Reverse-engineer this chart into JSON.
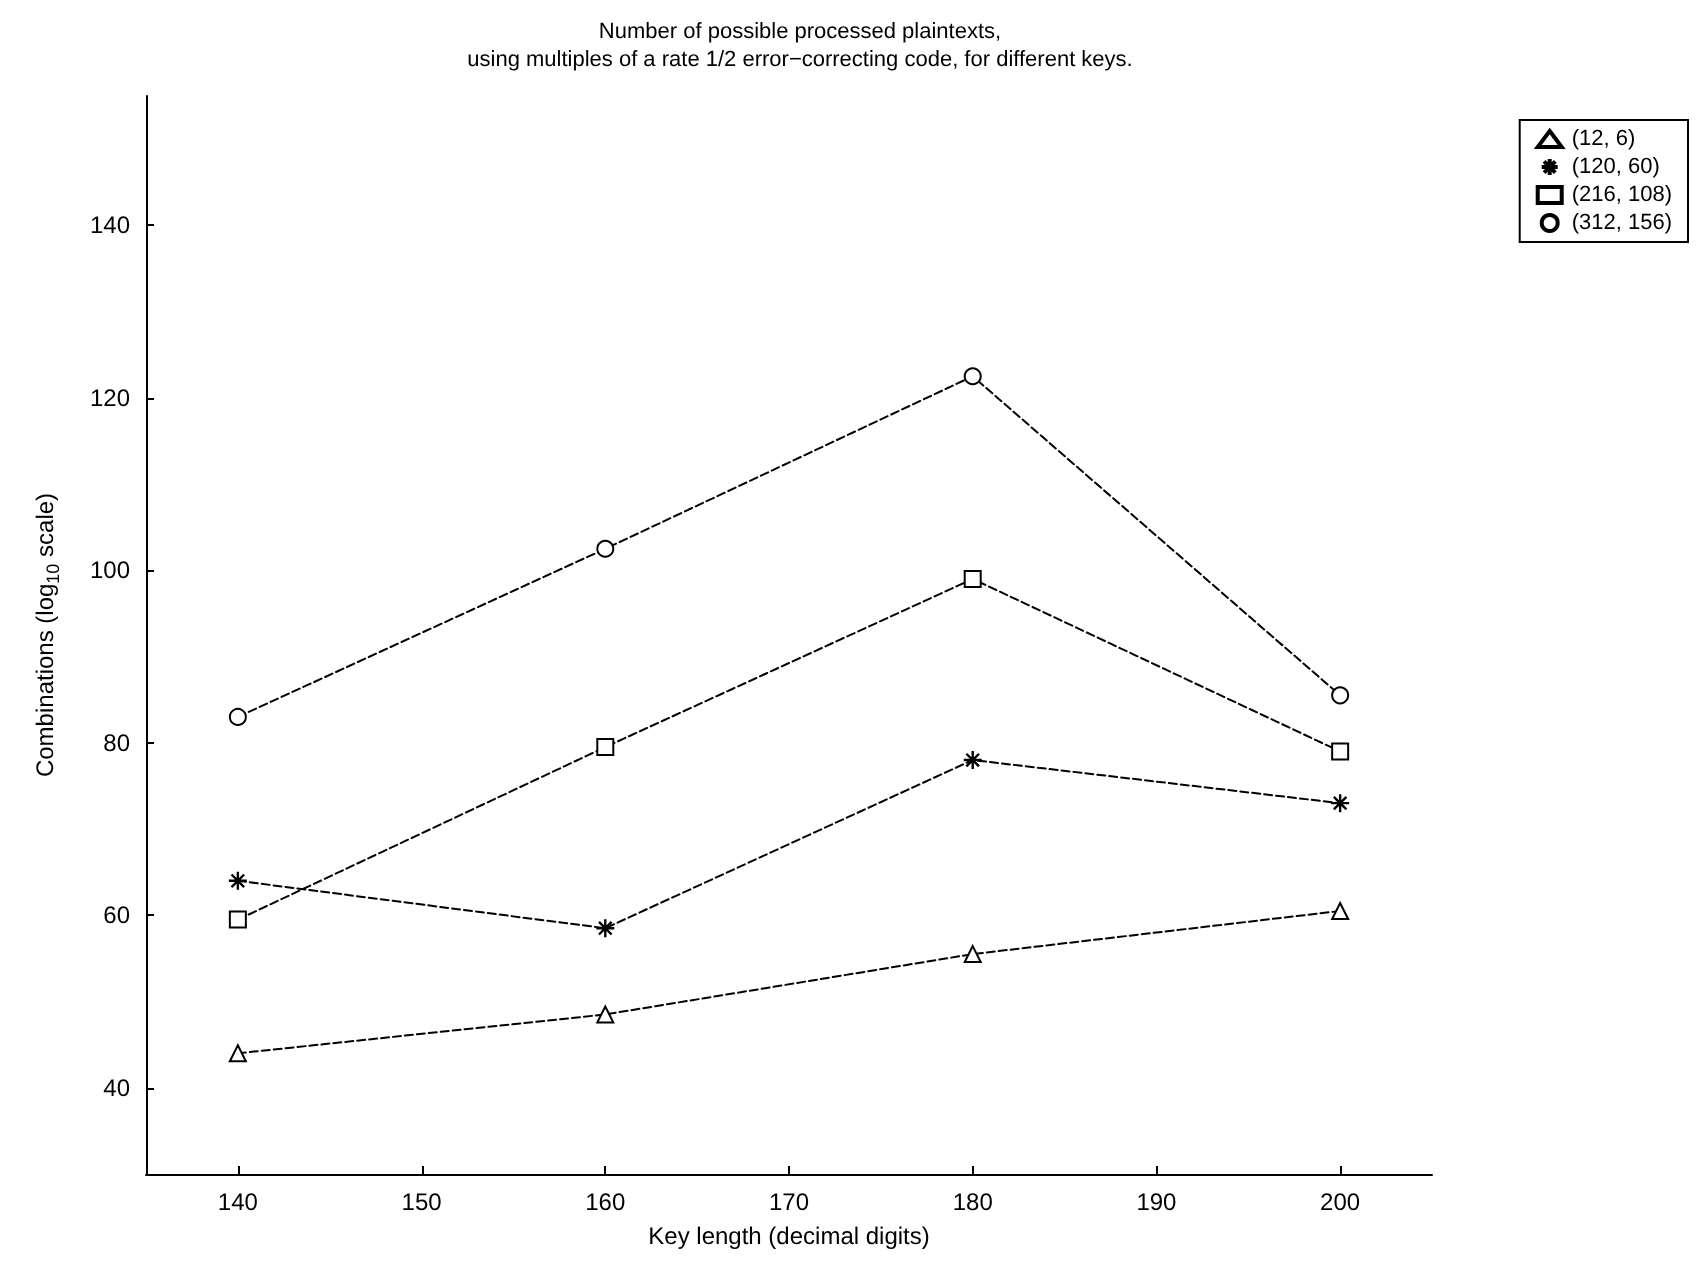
{
  "chart_data": {
    "type": "line",
    "title": "Number of possible processed plaintexts,\nusing multiples of a rate 1/2 error−correcting code, for different keys.",
    "xlabel": "Key length (decimal digits)",
    "ylabel": "Combinations (log$_{10}$ scale)",
    "x": [
      140,
      160,
      180,
      200
    ],
    "series": [
      {
        "name": "(12, 6)",
        "color": "#000000",
        "marker": "triangle",
        "values": [
          44,
          48.5,
          55.5,
          60.5
        ]
      },
      {
        "name": "(120, 60)",
        "color": "#000000",
        "marker": "cross",
        "values": [
          64,
          58.5,
          78,
          73
        ]
      },
      {
        "name": "(216, 108)",
        "color": "#000000",
        "marker": "square",
        "values": [
          59.5,
          79.5,
          99,
          79
        ]
      },
      {
        "name": "(312, 156)",
        "color": "#000000",
        "marker": "circle",
        "values": [
          83,
          102.5,
          122.5,
          85.5
        ]
      }
    ],
    "xlim": [
      135,
      205
    ],
    "xticks": [
      140,
      150,
      160,
      170,
      180,
      190,
      200
    ],
    "ylim": [
      30,
      155
    ],
    "yticks": [
      40,
      60,
      80,
      100,
      120,
      140
    ],
    "grid": false,
    "legend": "top right",
    "line_style": "dashed"
  }
}
